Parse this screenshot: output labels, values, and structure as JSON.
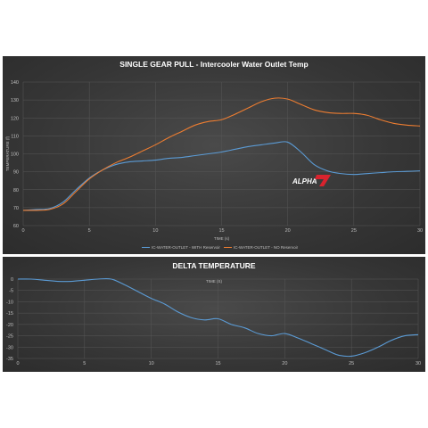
{
  "chart_data": [
    {
      "type": "line",
      "title": "SINGLE GEAR PULL - Intercooler Water Outlet Temp",
      "xlabel": "TIME (s)",
      "ylabel": "TEMPERATURE (f)",
      "xlim": [
        0,
        30
      ],
      "ylim": [
        60,
        140
      ],
      "x_ticks": [
        "0",
        "5",
        "10",
        "15",
        "20",
        "25",
        "30"
      ],
      "y_ticks": [
        "60",
        "70",
        "80",
        "90",
        "100",
        "110",
        "120",
        "130",
        "140"
      ],
      "grid": true,
      "legend_position": "bottom",
      "series": [
        {
          "name": "IC-WATER-OUTLET - WITH Reservoir",
          "color": "#5b9bd5",
          "x": [
            0,
            1,
            2,
            3,
            4,
            5,
            6,
            7,
            8,
            9,
            10,
            11,
            12,
            13,
            14,
            15,
            16,
            17,
            18,
            19,
            20,
            21,
            22,
            23,
            24,
            25,
            26,
            27,
            28,
            29,
            30
          ],
          "y": [
            68.5,
            69,
            69.5,
            73,
            80,
            86.5,
            91,
            94,
            95.5,
            96,
            96.5,
            97.5,
            98,
            99,
            100,
            101,
            102.5,
            104,
            105,
            106,
            106.5,
            101,
            94,
            90.5,
            89,
            88.5,
            89,
            89.5,
            90,
            90.2,
            90.5
          ]
        },
        {
          "name": "IC-WATER-OUTLET - NO Reservoir",
          "color": "#ed7d31",
          "x": [
            0,
            1,
            2,
            3,
            4,
            5,
            6,
            7,
            8,
            9,
            10,
            11,
            12,
            13,
            14,
            15,
            16,
            17,
            18,
            19,
            20,
            21,
            22,
            23,
            24,
            25,
            26,
            27,
            28,
            29,
            30
          ],
          "y": [
            68.5,
            68.5,
            69,
            72,
            79,
            86,
            91,
            95,
            98,
            101.5,
            105,
            109,
            112.5,
            116,
            118,
            119,
            122,
            125.5,
            129,
            131,
            130.5,
            127.5,
            124.5,
            123,
            122.5,
            122.5,
            121.5,
            119,
            117,
            116,
            115.5
          ]
        }
      ]
    },
    {
      "type": "line",
      "title": "DELTA TEMPERATURE",
      "xlabel": "TIME (S)",
      "ylabel": "",
      "xlim": [
        0,
        30
      ],
      "ylim": [
        -35,
        0
      ],
      "x_ticks": [
        "0",
        "5",
        "10",
        "15",
        "20",
        "25",
        "30"
      ],
      "y_ticks": [
        "0",
        "-5",
        "-10",
        "-15",
        "-20",
        "-25",
        "-30",
        "-35"
      ],
      "grid": true,
      "series": [
        {
          "name": "",
          "color": "#5b9bd5",
          "x": [
            0,
            1,
            2,
            3,
            4,
            5,
            6,
            7,
            8,
            9,
            10,
            11,
            12,
            13,
            14,
            15,
            16,
            17,
            18,
            19,
            20,
            21,
            22,
            23,
            24,
            25,
            26,
            27,
            28,
            29,
            30
          ],
          "y": [
            0,
            0,
            -0.5,
            -1,
            -1,
            -0.5,
            0,
            0,
            -2.5,
            -5.5,
            -8.5,
            -11,
            -14.5,
            -17,
            -18,
            -17.5,
            -20,
            -21.5,
            -24,
            -25,
            -24,
            -26,
            -28.5,
            -31,
            -33.5,
            -34,
            -32.5,
            -30,
            -27,
            -25,
            -24.5
          ]
        }
      ]
    }
  ],
  "logo": {
    "text": "ALPHA",
    "colors": {
      "text": "#ffffff",
      "mark": "#d9232e"
    }
  },
  "colors": {
    "background": "#3a3a3a",
    "grid": "#575757",
    "text": "#bfbfbf"
  }
}
